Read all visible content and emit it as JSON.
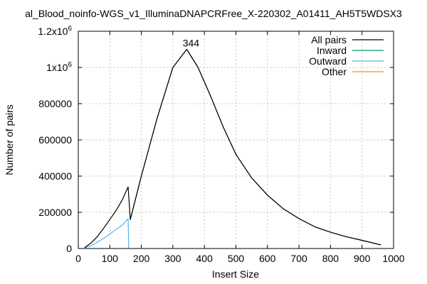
{
  "chart_data": {
    "type": "line",
    "title": "al_Blood_noinfo-WGS_v1_IlluminaDNAPCRFree_X-220302_A01411_AH5T5WDSX3",
    "xlabel": "Insert Size",
    "ylabel": "Number of pairs",
    "xlim": [
      0,
      1000
    ],
    "ylim": [
      0,
      1200000
    ],
    "x_ticks": [
      0,
      100,
      200,
      300,
      400,
      500,
      600,
      700,
      800,
      900,
      1000
    ],
    "y_ticks": [
      0,
      200000,
      400000,
      600000,
      800000,
      1000000,
      1200000
    ],
    "y_tick_labels": [
      "0",
      "200000",
      "400000",
      "600000",
      "800000",
      "1x10^6",
      "1.2x10^6"
    ],
    "grid": true,
    "legend_position": "top-right",
    "peak_label": "344",
    "series": [
      {
        "name": "All pairs",
        "color": "#000000",
        "x": [
          20,
          40,
          60,
          80,
          100,
          120,
          140,
          158,
          165,
          200,
          250,
          300,
          344,
          380,
          420,
          460,
          500,
          550,
          600,
          650,
          700,
          750,
          800,
          850,
          900,
          960
        ],
        "y": [
          5000,
          30000,
          65000,
          110000,
          160000,
          210000,
          270000,
          340000,
          160000,
          400000,
          720000,
          1000000,
          1100000,
          1000000,
          840000,
          670000,
          520000,
          390000,
          295000,
          220000,
          165000,
          120000,
          90000,
          65000,
          45000,
          20000
        ]
      },
      {
        "name": "Inward",
        "color": "#009e73",
        "x": [
          165,
          200,
          250,
          300,
          344,
          380,
          420,
          460,
          500,
          550,
          600,
          650,
          700,
          750,
          800,
          850,
          900,
          960
        ],
        "y": [
          160000,
          400000,
          720000,
          1000000,
          1100000,
          1000000,
          840000,
          670000,
          520000,
          390000,
          295000,
          220000,
          165000,
          120000,
          90000,
          65000,
          45000,
          20000
        ]
      },
      {
        "name": "Outward",
        "color": "#56b4e9",
        "x": [
          20,
          40,
          60,
          80,
          100,
          120,
          140,
          158,
          160
        ],
        "y": [
          3000,
          15000,
          35000,
          55000,
          80000,
          105000,
          130000,
          165000,
          0
        ]
      },
      {
        "name": "Other",
        "color": "#e69f00",
        "x": [],
        "y": []
      }
    ]
  }
}
